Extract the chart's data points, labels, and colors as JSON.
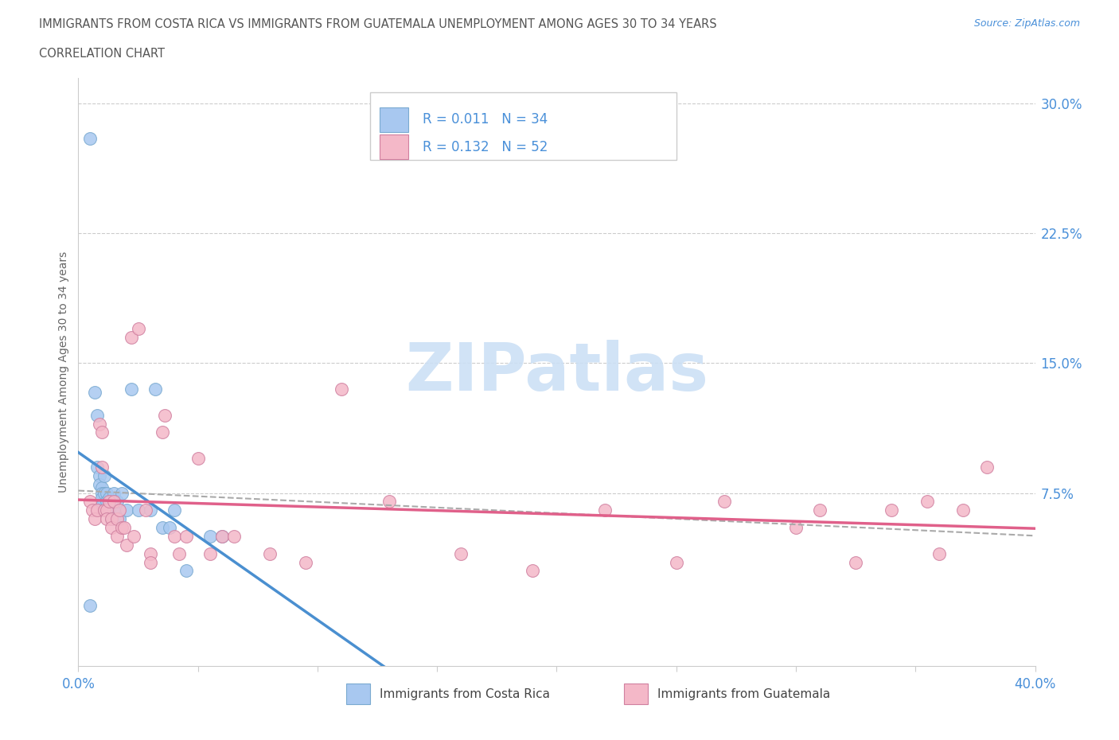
{
  "title_line1": "IMMIGRANTS FROM COSTA RICA VS IMMIGRANTS FROM GUATEMALA UNEMPLOYMENT AMONG AGES 30 TO 34 YEARS",
  "title_line2": "CORRELATION CHART",
  "source_text": "Source: ZipAtlas.com",
  "ylabel": "Unemployment Among Ages 30 to 34 years",
  "xmin": 0.0,
  "xmax": 0.4,
  "ymin": -0.025,
  "ymax": 0.315,
  "yticks": [
    0.075,
    0.15,
    0.225,
    0.3
  ],
  "ytick_labels": [
    "7.5%",
    "15.0%",
    "22.5%",
    "30.0%"
  ],
  "grid_color": "#cccccc",
  "title_color": "#555555",
  "axis_label_color": "#4a90d9",
  "background_color": "#ffffff",
  "watermark_text": "ZIPatlas",
  "watermark_color": "#cce0f5",
  "costa_rica_color": "#a8c8f0",
  "costa_rica_edge": "#7aaad0",
  "guatemala_color": "#f4b8c8",
  "guatemala_edge": "#d080a0",
  "costa_rica_R": 0.011,
  "costa_rica_N": 34,
  "guatemala_R": 0.132,
  "guatemala_N": 52,
  "legend_label_cr": "Immigrants from Costa Rica",
  "legend_label_gt": "Immigrants from Guatemala",
  "costa_rica_x": [
    0.005,
    0.007,
    0.008,
    0.008,
    0.009,
    0.009,
    0.01,
    0.01,
    0.01,
    0.01,
    0.011,
    0.011,
    0.012,
    0.012,
    0.013,
    0.013,
    0.014,
    0.015,
    0.015,
    0.016,
    0.017,
    0.018,
    0.02,
    0.022,
    0.025,
    0.03,
    0.032,
    0.035,
    0.038,
    0.04,
    0.045,
    0.055,
    0.06,
    0.005
  ],
  "costa_rica_y": [
    0.28,
    0.133,
    0.12,
    0.09,
    0.085,
    0.08,
    0.078,
    0.075,
    0.072,
    0.068,
    0.085,
    0.075,
    0.075,
    0.07,
    0.072,
    0.065,
    0.06,
    0.075,
    0.065,
    0.07,
    0.06,
    0.075,
    0.065,
    0.135,
    0.065,
    0.065,
    0.135,
    0.055,
    0.055,
    0.065,
    0.03,
    0.05,
    0.05,
    0.01
  ],
  "guatemala_x": [
    0.005,
    0.006,
    0.007,
    0.008,
    0.009,
    0.01,
    0.01,
    0.011,
    0.012,
    0.012,
    0.013,
    0.014,
    0.014,
    0.015,
    0.016,
    0.016,
    0.017,
    0.018,
    0.019,
    0.02,
    0.022,
    0.023,
    0.025,
    0.028,
    0.03,
    0.03,
    0.035,
    0.036,
    0.04,
    0.042,
    0.045,
    0.05,
    0.055,
    0.06,
    0.065,
    0.08,
    0.095,
    0.11,
    0.13,
    0.16,
    0.19,
    0.22,
    0.25,
    0.27,
    0.3,
    0.31,
    0.325,
    0.34,
    0.355,
    0.36,
    0.37,
    0.38
  ],
  "guatemala_y": [
    0.07,
    0.065,
    0.06,
    0.065,
    0.115,
    0.11,
    0.09,
    0.065,
    0.065,
    0.06,
    0.07,
    0.06,
    0.055,
    0.07,
    0.06,
    0.05,
    0.065,
    0.055,
    0.055,
    0.045,
    0.165,
    0.05,
    0.17,
    0.065,
    0.04,
    0.035,
    0.11,
    0.12,
    0.05,
    0.04,
    0.05,
    0.095,
    0.04,
    0.05,
    0.05,
    0.04,
    0.035,
    0.135,
    0.07,
    0.04,
    0.03,
    0.065,
    0.035,
    0.07,
    0.055,
    0.065,
    0.035,
    0.065,
    0.07,
    0.04,
    0.065,
    0.09
  ]
}
